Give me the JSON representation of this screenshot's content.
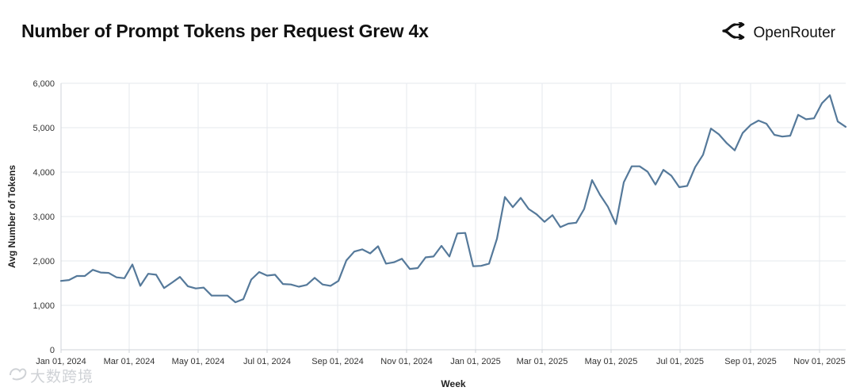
{
  "header": {
    "title": "Number of Prompt Tokens per Request Grew 4x",
    "brand": "OpenRouter"
  },
  "watermark": {
    "text": "大数跨境"
  },
  "colors": {
    "line": "#55799a",
    "grid": "#e6e9ed",
    "text": "#333333"
  },
  "chart_data": {
    "type": "line",
    "title": "",
    "xlabel": "Week",
    "ylabel": "Avg Number of Tokens",
    "ylim": [
      0,
      6000
    ],
    "yticks": [
      0,
      1000,
      2000,
      3000,
      4000,
      5000,
      6000
    ],
    "ytick_labels": [
      "0",
      "1,000",
      "2,000",
      "3,000",
      "4,000",
      "5,000",
      "6,000"
    ],
    "xticks": [
      {
        "label": "Jan 01, 2024",
        "week": 0
      },
      {
        "label": "Mar 01, 2024",
        "week": 8.6
      },
      {
        "label": "May 01, 2024",
        "week": 17.3
      },
      {
        "label": "Jul 01, 2024",
        "week": 26
      },
      {
        "label": "Sep 01, 2024",
        "week": 34.9
      },
      {
        "label": "Nov 01, 2024",
        "week": 43.6
      },
      {
        "label": "Jan 01, 2025",
        "week": 52.3
      },
      {
        "label": "Mar 01, 2025",
        "week": 60.7
      },
      {
        "label": "May 01, 2025",
        "week": 69.4
      },
      {
        "label": "Jul 01, 2025",
        "week": 78.1
      },
      {
        "label": "Sep 01, 2025",
        "week": 87
      },
      {
        "label": "Nov 01, 2025",
        "week": 95.7
      }
    ],
    "grid": true,
    "series": [
      {
        "name": "Avg Number of Tokens",
        "values": [
          1550,
          1570,
          1660,
          1660,
          1800,
          1740,
          1730,
          1630,
          1610,
          1920,
          1440,
          1710,
          1690,
          1390,
          1510,
          1640,
          1430,
          1380,
          1400,
          1220,
          1220,
          1220,
          1070,
          1140,
          1580,
          1750,
          1670,
          1690,
          1480,
          1470,
          1420,
          1460,
          1620,
          1470,
          1440,
          1550,
          2010,
          2210,
          2260,
          2170,
          2330,
          1940,
          1970,
          2050,
          1820,
          1840,
          2080,
          2100,
          2340,
          2100,
          2620,
          2630,
          1880,
          1890,
          1940,
          2500,
          3440,
          3210,
          3420,
          3170,
          3050,
          2880,
          3030,
          2760,
          2840,
          2860,
          3170,
          3820,
          3490,
          3220,
          2830,
          3770,
          4130,
          4130,
          4010,
          3720,
          4050,
          3920,
          3660,
          3690,
          4110,
          4390,
          4980,
          4850,
          4650,
          4490,
          4880,
          5060,
          5160,
          5090,
          4840,
          4800,
          4820,
          5290,
          5190,
          5210,
          5550,
          5730,
          5140,
          5020
        ]
      }
    ]
  }
}
